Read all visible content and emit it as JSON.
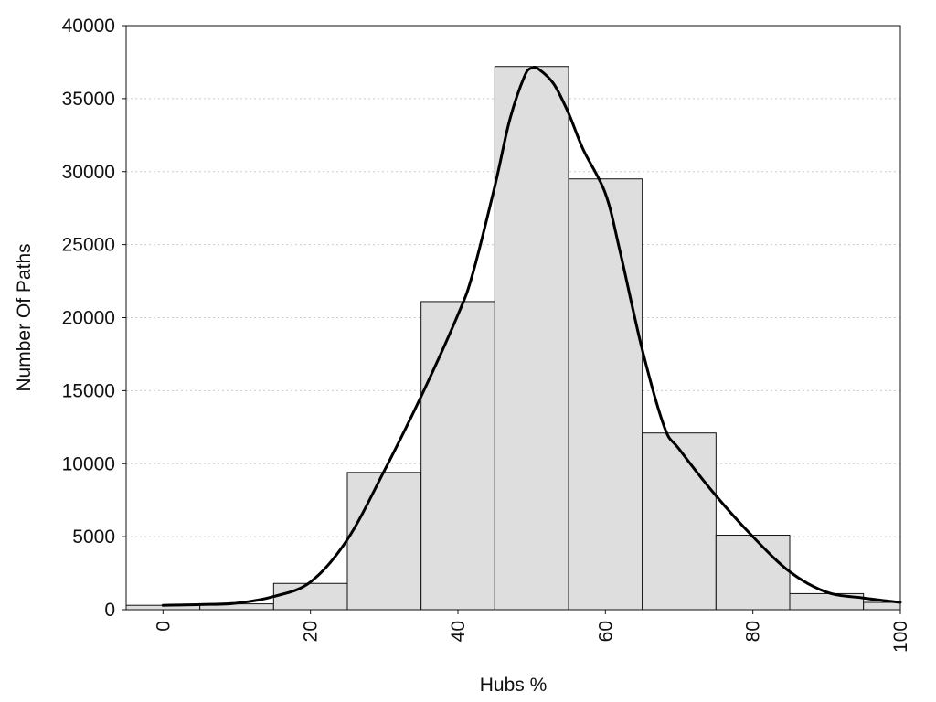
{
  "chart_data": {
    "type": "bar",
    "xlabel": "Hubs %",
    "ylabel": "Number Of Paths",
    "xlim": [
      -5,
      100
    ],
    "ylim": [
      0,
      40000
    ],
    "x_ticks": [
      0,
      20,
      40,
      60,
      80,
      100
    ],
    "y_ticks": [
      0,
      5000,
      10000,
      15000,
      20000,
      25000,
      30000,
      35000,
      40000
    ],
    "grid": "horizontal dotted",
    "bins": [
      {
        "x_start": -5,
        "x_end": 5,
        "value": 300
      },
      {
        "x_start": 5,
        "x_end": 15,
        "value": 400
      },
      {
        "x_start": 15,
        "x_end": 25,
        "value": 1800
      },
      {
        "x_start": 25,
        "x_end": 35,
        "value": 9400
      },
      {
        "x_start": 35,
        "x_end": 45,
        "value": 21100
      },
      {
        "x_start": 45,
        "x_end": 55,
        "value": 37200
      },
      {
        "x_start": 55,
        "x_end": 65,
        "value": 29500
      },
      {
        "x_start": 65,
        "x_end": 75,
        "value": 12100
      },
      {
        "x_start": 75,
        "x_end": 85,
        "value": 5100
      },
      {
        "x_start": 85,
        "x_end": 95,
        "value": 1100
      },
      {
        "x_start": 95,
        "x_end": 100,
        "value": 500
      }
    ],
    "density_curve": {
      "x": [
        0,
        5,
        10,
        15,
        20,
        25,
        30,
        35,
        40,
        42,
        45,
        47,
        49,
        50,
        51,
        53,
        55,
        57,
        60,
        62,
        65,
        68,
        70,
        75,
        80,
        85,
        90,
        95,
        100
      ],
      "y": [
        300,
        350,
        450,
        900,
        1900,
        4800,
        9500,
        14600,
        20200,
        23000,
        29000,
        33500,
        36500,
        37100,
        37000,
        36000,
        34000,
        31500,
        28500,
        24500,
        17800,
        12500,
        11000,
        7800,
        5000,
        2600,
        1200,
        800,
        500
      ]
    },
    "colors": {
      "bar_fill": "#dedede",
      "bar_edge": "#111111",
      "curve": "#000000",
      "grid": "#cccccc"
    }
  }
}
